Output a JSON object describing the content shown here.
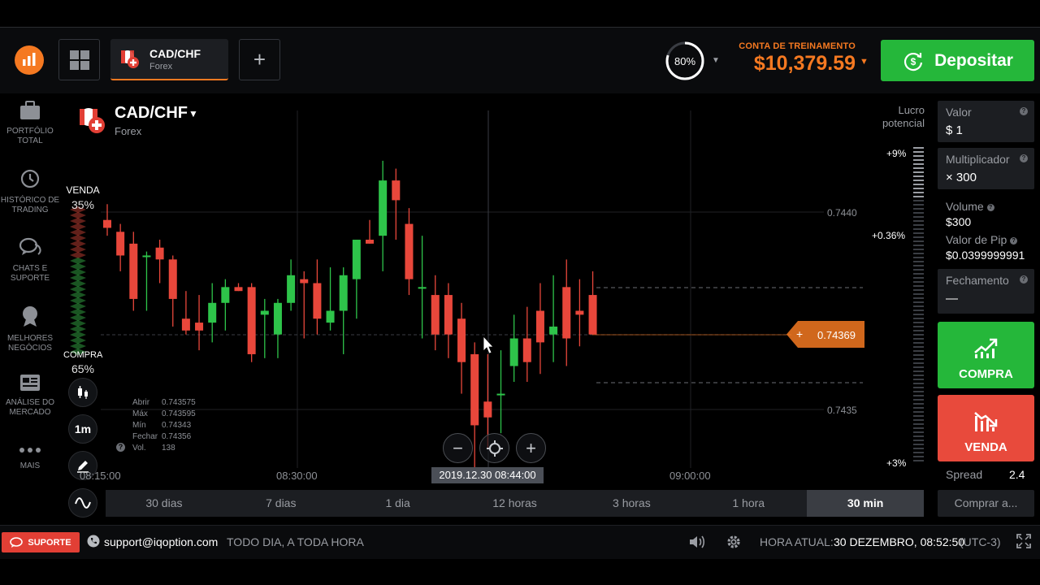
{
  "header": {
    "asset_tab": {
      "name": "CAD/CHF",
      "type": "Forex"
    },
    "add_tab_label": "+",
    "profit_pct": "80%",
    "account_label": "CONTA DE TREINAMENTO",
    "balance": "$10,379.59",
    "deposit_label": "Depositar",
    "colors": {
      "accent": "#f57921",
      "green": "#25b73a",
      "red": "#e84a3c"
    }
  },
  "sidebar": {
    "items": [
      {
        "label": "PORTFÓLIO TOTAL",
        "icon": "briefcase-icon"
      },
      {
        "label": "HISTÓRICO DE TRADING",
        "icon": "history-icon"
      },
      {
        "label": "CHATS E SUPORTE",
        "icon": "chat-icon"
      },
      {
        "label": "MELHORES NEGÓCIOS",
        "icon": "award-icon"
      },
      {
        "label": "ANÁLISE DO MERCADO",
        "icon": "news-icon"
      },
      {
        "label": "MAIS",
        "icon": "more-icon"
      }
    ]
  },
  "chart": {
    "pair": "CAD/CHF",
    "pair_type": "Forex",
    "lucro_label": "Lucro potencial",
    "venda_label": "VENDA",
    "venda_pct": "35%",
    "compra_label": "COMPRA",
    "compra_pct": "65%",
    "timeframe_btn": "1m",
    "ohlc": [
      {
        "k": "Abrir",
        "v": "0.743575"
      },
      {
        "k": "Máx",
        "v": "0.743595"
      },
      {
        "k": "Mín",
        "v": "0.74343"
      },
      {
        "k": "Fechar",
        "v": "0.74356"
      },
      {
        "k": "Vol.",
        "v": "138"
      }
    ],
    "time_tag": "2019.12.30 08:44:00",
    "time_labels": [
      "08:15:00",
      "08:30:00",
      "09:00:00"
    ],
    "price_labels": [
      "0.7440",
      "0.7435"
    ],
    "current_price": "0.74369",
    "pct_labels": [
      "+9%",
      "+0.36%",
      "+3%"
    ]
  },
  "chart_data": {
    "type": "candlestick",
    "x_labels": [
      "08:15:00",
      "08:30:00",
      "09:00:00"
    ],
    "y_ticks": [
      0.744,
      0.7435
    ],
    "current_price": 0.74369,
    "candles": [
      {
        "o": 0.74398,
        "h": 0.74402,
        "l": 0.74394,
        "c": 0.74396
      },
      {
        "o": 0.74395,
        "h": 0.74397,
        "l": 0.74385,
        "c": 0.74389
      },
      {
        "o": 0.74392,
        "h": 0.74395,
        "l": 0.74375,
        "c": 0.74378
      },
      {
        "o": 0.74389,
        "h": 0.7439,
        "l": 0.74375,
        "c": 0.74389
      },
      {
        "o": 0.74391,
        "h": 0.74393,
        "l": 0.74382,
        "c": 0.74388
      },
      {
        "o": 0.74388,
        "h": 0.74389,
        "l": 0.74371,
        "c": 0.74378
      },
      {
        "o": 0.74373,
        "h": 0.7438,
        "l": 0.74369,
        "c": 0.7437
      },
      {
        "o": 0.74372,
        "h": 0.74379,
        "l": 0.74365,
        "c": 0.7437
      },
      {
        "o": 0.74372,
        "h": 0.74382,
        "l": 0.74367,
        "c": 0.74377
      },
      {
        "o": 0.74377,
        "h": 0.74383,
        "l": 0.7437,
        "c": 0.74381
      },
      {
        "o": 0.74381,
        "h": 0.74382,
        "l": 0.7438,
        "c": 0.7438
      },
      {
        "o": 0.74381,
        "h": 0.74382,
        "l": 0.74362,
        "c": 0.74364
      },
      {
        "o": 0.74374,
        "h": 0.74378,
        "l": 0.74363,
        "c": 0.74375
      },
      {
        "o": 0.74369,
        "h": 0.74378,
        "l": 0.74363,
        "c": 0.74377
      },
      {
        "o": 0.74377,
        "h": 0.74388,
        "l": 0.74375,
        "c": 0.74384
      },
      {
        "o": 0.74383,
        "h": 0.74385,
        "l": 0.74368,
        "c": 0.74382
      },
      {
        "o": 0.74382,
        "h": 0.74388,
        "l": 0.74369,
        "c": 0.74373
      },
      {
        "o": 0.74372,
        "h": 0.74386,
        "l": 0.7437,
        "c": 0.74375
      },
      {
        "o": 0.74375,
        "h": 0.74386,
        "l": 0.74364,
        "c": 0.74384
      },
      {
        "o": 0.74383,
        "h": 0.74393,
        "l": 0.74373,
        "c": 0.74393
      },
      {
        "o": 0.74393,
        "h": 0.74398,
        "l": 0.74392,
        "c": 0.74392
      },
      {
        "o": 0.74394,
        "h": 0.74413,
        "l": 0.74385,
        "c": 0.74408
      },
      {
        "o": 0.74408,
        "h": 0.74411,
        "l": 0.74393,
        "c": 0.74403
      },
      {
        "o": 0.74397,
        "h": 0.74401,
        "l": 0.74379,
        "c": 0.74383
      },
      {
        "o": 0.74381,
        "h": 0.74394,
        "l": 0.74368,
        "c": 0.74381
      },
      {
        "o": 0.74379,
        "h": 0.74384,
        "l": 0.74365,
        "c": 0.74369
      },
      {
        "o": 0.74379,
        "h": 0.74382,
        "l": 0.74363,
        "c": 0.74369
      },
      {
        "o": 0.74373,
        "h": 0.74377,
        "l": 0.74354,
        "c": 0.74362
      },
      {
        "o": 0.74364,
        "h": 0.74367,
        "l": 0.74333,
        "c": 0.74346
      },
      {
        "o": 0.74352,
        "h": 0.74364,
        "l": 0.7434,
        "c": 0.74348
      },
      {
        "o": 0.74354,
        "h": 0.74365,
        "l": 0.74344,
        "c": 0.74354
      },
      {
        "o": 0.74361,
        "h": 0.74374,
        "l": 0.74357,
        "c": 0.74368
      },
      {
        "o": 0.74368,
        "h": 0.74376,
        "l": 0.74357,
        "c": 0.74362
      },
      {
        "o": 0.74375,
        "h": 0.74382,
        "l": 0.74359,
        "c": 0.74367
      },
      {
        "o": 0.74369,
        "h": 0.74384,
        "l": 0.74362,
        "c": 0.74371
      },
      {
        "o": 0.74381,
        "h": 0.74388,
        "l": 0.74361,
        "c": 0.74368
      },
      {
        "o": 0.74375,
        "h": 0.74383,
        "l": 0.74366,
        "c": 0.74374
      },
      {
        "o": 0.74379,
        "h": 0.74385,
        "l": 0.74369,
        "c": 0.74369
      }
    ]
  },
  "timeframes": [
    "30 dias",
    "7 dias",
    "1 dia",
    "12 horas",
    "3 horas",
    "1 hora",
    "30 min"
  ],
  "active_timeframe": "30 min",
  "right_panel": {
    "valor_label": "Valor",
    "valor_value": "$ 1",
    "mult_label": "Multiplicador",
    "mult_value": "× 300",
    "volume_label": "Volume",
    "volume_value": "$300",
    "pip_label": "Valor de Pip",
    "pip_value": "$0.0399999991",
    "fech_label": "Fechamento",
    "fech_value": "—",
    "compra_label": "COMPRA",
    "venda_label": "VENDA",
    "spread_label": "Spread",
    "spread_value": "2.4",
    "comprar_label": "Comprar a..."
  },
  "footer": {
    "support_label": "SUPORTE",
    "email": "support@iqoption.com",
    "hours": "TODO DIA, A TODA HORA",
    "time_label": "HORA ATUAL:",
    "time_value": "30 DEZEMBRO, 08:52:50",
    "tz": "(UTC-3)"
  }
}
